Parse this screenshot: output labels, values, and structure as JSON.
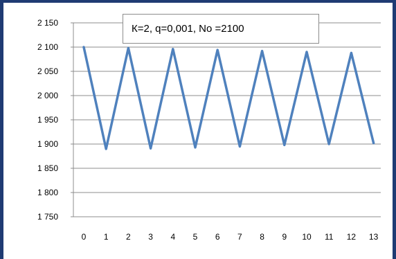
{
  "chart_data": {
    "type": "line",
    "title": "",
    "xlabel": "",
    "ylabel": "",
    "categories": [
      "0",
      "1",
      "2",
      "3",
      "4",
      "5",
      "6",
      "7",
      "8",
      "9",
      "10",
      "11",
      "12",
      "13"
    ],
    "series": [
      {
        "name": "",
        "color": "#4f81bd",
        "values": [
          2100,
          1890,
          2098,
          1891,
          2096,
          1893,
          2094,
          1895,
          2092,
          1898,
          2090,
          1900,
          2088,
          1902
        ]
      }
    ],
    "yticks": [
      1750,
      1800,
      1850,
      1900,
      1950,
      2000,
      2050,
      2100,
      2150
    ],
    "ytick_labels": [
      "1 750",
      "1 800",
      "1 850",
      "1 900",
      "1 950",
      "2 000",
      "2 050",
      "2 100",
      "2 150"
    ],
    "ylim": [
      1750,
      2150
    ],
    "grid": true,
    "annotation": "К=2,  q=0,001,  No =2100"
  }
}
